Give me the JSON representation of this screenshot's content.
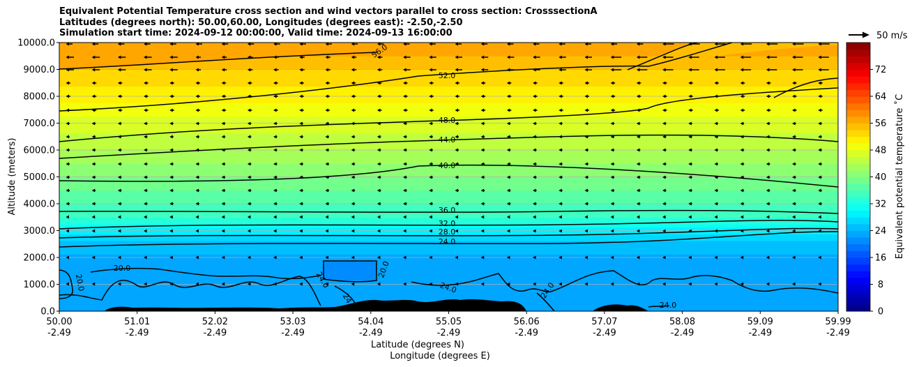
{
  "title": {
    "line1": "Equivalent Potential Temperature cross section and wind vectors parallel to cross section: CrosssectionA",
    "line2": "Latitudes (degrees north): 50.00,60.00, Longitudes (degrees east): -2.50,-2.50",
    "line3": "Simulation start time: 2024-09-12 00:00:00, Valid time: 2024-09-13 16:00:00"
  },
  "chart_data": {
    "type": "heatmap",
    "x_ticks": [
      {
        "lat": "50.00",
        "lon": "-2.49"
      },
      {
        "lat": "51.01",
        "lon": "-2.49"
      },
      {
        "lat": "52.02",
        "lon": "-2.49"
      },
      {
        "lat": "53.03",
        "lon": "-2.49"
      },
      {
        "lat": "54.04",
        "lon": "-2.49"
      },
      {
        "lat": "55.05",
        "lon": "-2.49"
      },
      {
        "lat": "56.06",
        "lon": "-2.49"
      },
      {
        "lat": "57.07",
        "lon": "-2.49"
      },
      {
        "lat": "58.08",
        "lon": "-2.49"
      },
      {
        "lat": "59.09",
        "lon": "-2.49"
      },
      {
        "lat": "59.99",
        "lon": "-2.49"
      }
    ],
    "xlabel": "Latitude (degrees N)",
    "xlabel2": "Longitude (degrees E)",
    "ylabel": "Altitude (meters)",
    "ylim": [
      0,
      10000
    ],
    "y_ticks": [
      "0.0",
      "1000.0",
      "2000.0",
      "3000.0",
      "4000.0",
      "5000.0",
      "6000.0",
      "7000.0",
      "8000.0",
      "9000.0",
      "10000.0"
    ],
    "grid": "horizontal",
    "colorbar": {
      "label": "Equivalent potential temperature ˚C",
      "range": [
        0,
        80
      ],
      "ticks": [
        "0",
        "8",
        "16",
        "24",
        "32",
        "40",
        "48",
        "56",
        "64",
        "72"
      ],
      "colormap": "jet"
    },
    "quiver_key": "50 m/s",
    "wind_direction": "toward lower latitude (leftward)",
    "contours": [
      {
        "level": 20.0,
        "label": "20.0"
      },
      {
        "level": 24.0,
        "label": "24.0"
      },
      {
        "level": 28.0,
        "label": "28.0"
      },
      {
        "level": 32.0,
        "label": "32.0"
      },
      {
        "level": 36.0,
        "label": "36.0"
      },
      {
        "level": 40.0,
        "label": "40.0"
      },
      {
        "level": 44.0,
        "label": "44.0"
      },
      {
        "level": 48.0,
        "label": "48.0"
      },
      {
        "level": 52.0,
        "label": "52.0"
      },
      {
        "level": 56.0,
        "label": "56.0"
      }
    ],
    "theta_e_profile": [
      {
        "altitude": 0,
        "value": 23
      },
      {
        "altitude": 1500,
        "value": 22
      },
      {
        "altitude": 2500,
        "value": 25
      },
      {
        "altitude": 3000,
        "value": 29
      },
      {
        "altitude": 3500,
        "value": 34
      },
      {
        "altitude": 4500,
        "value": 38
      },
      {
        "altitude": 6000,
        "value": 44
      },
      {
        "altitude": 7500,
        "value": 49
      },
      {
        "altitude": 9000,
        "value": 54
      },
      {
        "altitude": 10000,
        "value": 58
      }
    ]
  }
}
